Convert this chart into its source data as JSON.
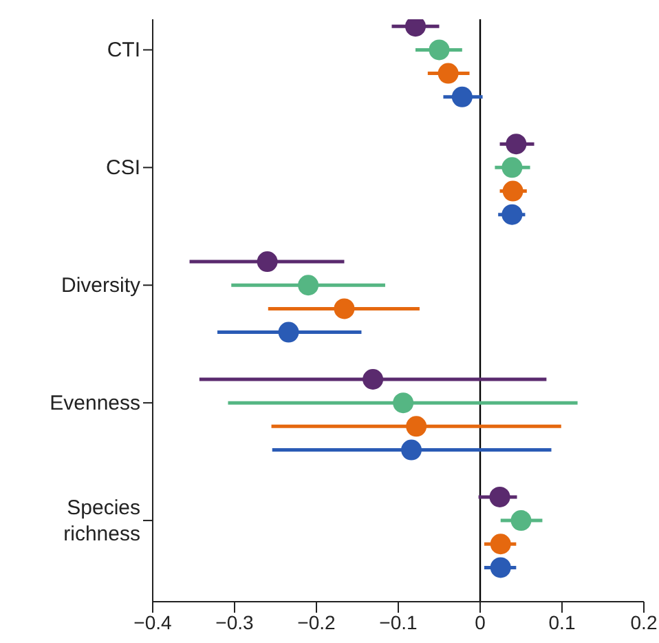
{
  "chart_data": {
    "type": "scatter",
    "orientation": "horizontal",
    "categories": [
      "CTI",
      "CSI",
      "Diversity",
      "Evenness",
      "Species richness"
    ],
    "series": [
      {
        "color": "#5a2a6e",
        "values": [
          -0.079,
          0.044,
          -0.26,
          -0.131,
          0.024
        ],
        "errors": [
          [
            -0.108,
            -0.05
          ],
          [
            0.024,
            0.066
          ],
          [
            -0.355,
            -0.166
          ],
          [
            -0.343,
            0.081
          ],
          [
            -0.002,
            0.045
          ]
        ]
      },
      {
        "color": "#55b683",
        "values": [
          -0.05,
          0.039,
          -0.21,
          -0.094,
          0.05
        ],
        "errors": [
          [
            -0.079,
            -0.022
          ],
          [
            0.018,
            0.061
          ],
          [
            -0.304,
            -0.116
          ],
          [
            -0.308,
            0.119
          ],
          [
            0.025,
            0.076
          ]
        ]
      },
      {
        "color": "#e5680f",
        "values": [
          -0.039,
          0.04,
          -0.166,
          -0.078,
          0.025
        ],
        "errors": [
          [
            -0.064,
            -0.013
          ],
          [
            0.024,
            0.057
          ],
          [
            -0.259,
            -0.074
          ],
          [
            -0.255,
            0.099
          ],
          [
            0.005,
            0.044
          ]
        ]
      },
      {
        "color": "#2a5bb5",
        "values": [
          -0.022,
          0.039,
          -0.234,
          -0.084,
          0.025
        ],
        "errors": [
          [
            -0.045,
            0.003
          ],
          [
            0.022,
            0.055
          ],
          [
            -0.321,
            -0.145
          ],
          [
            -0.254,
            0.087
          ],
          [
            0.005,
            0.044
          ]
        ]
      }
    ],
    "xlim": [
      -0.4,
      0.2
    ],
    "xticks": [
      {
        "value": -0.4,
        "label": "−0.4"
      },
      {
        "value": -0.3,
        "label": "−0.3"
      },
      {
        "value": -0.2,
        "label": "−0.2"
      },
      {
        "value": -0.1,
        "label": "−0.1"
      },
      0,
      0.1,
      0.2
    ],
    "ref_lines": [
      {
        "axis": "x",
        "value": 0,
        "color": "#000000"
      }
    ],
    "marker": "circle"
  }
}
